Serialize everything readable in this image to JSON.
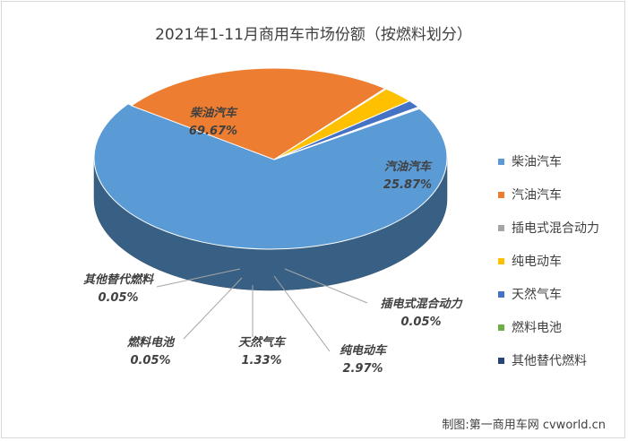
{
  "chart_data": {
    "type": "pie",
    "title": "2021年1-11月商用车市场份额（按燃料划分）",
    "series": [
      {
        "name": "柴油汽车",
        "value": 69.67,
        "label": "69.67%",
        "color": "#5b9bd5"
      },
      {
        "name": "汽油汽车",
        "value": 25.87,
        "label": "25.87%",
        "color": "#ed7d31"
      },
      {
        "name": "插电式混合动力",
        "value": 0.05,
        "label": "0.05%",
        "color": "#a5a5a5"
      },
      {
        "name": "纯电动车",
        "value": 2.97,
        "label": "2.97%",
        "color": "#ffc000"
      },
      {
        "name": "天然气车",
        "value": 1.33,
        "label": "1.33%",
        "color": "#4472c4"
      },
      {
        "name": "燃料电池",
        "value": 0.05,
        "label": "0.05%",
        "color": "#70ad47"
      },
      {
        "name": "其他替代燃料",
        "value": 0.05,
        "label": "0.05%",
        "color": "#264478"
      }
    ],
    "legend_position": "right"
  },
  "credit": "制图:第一商用车网 cvworld.cn"
}
